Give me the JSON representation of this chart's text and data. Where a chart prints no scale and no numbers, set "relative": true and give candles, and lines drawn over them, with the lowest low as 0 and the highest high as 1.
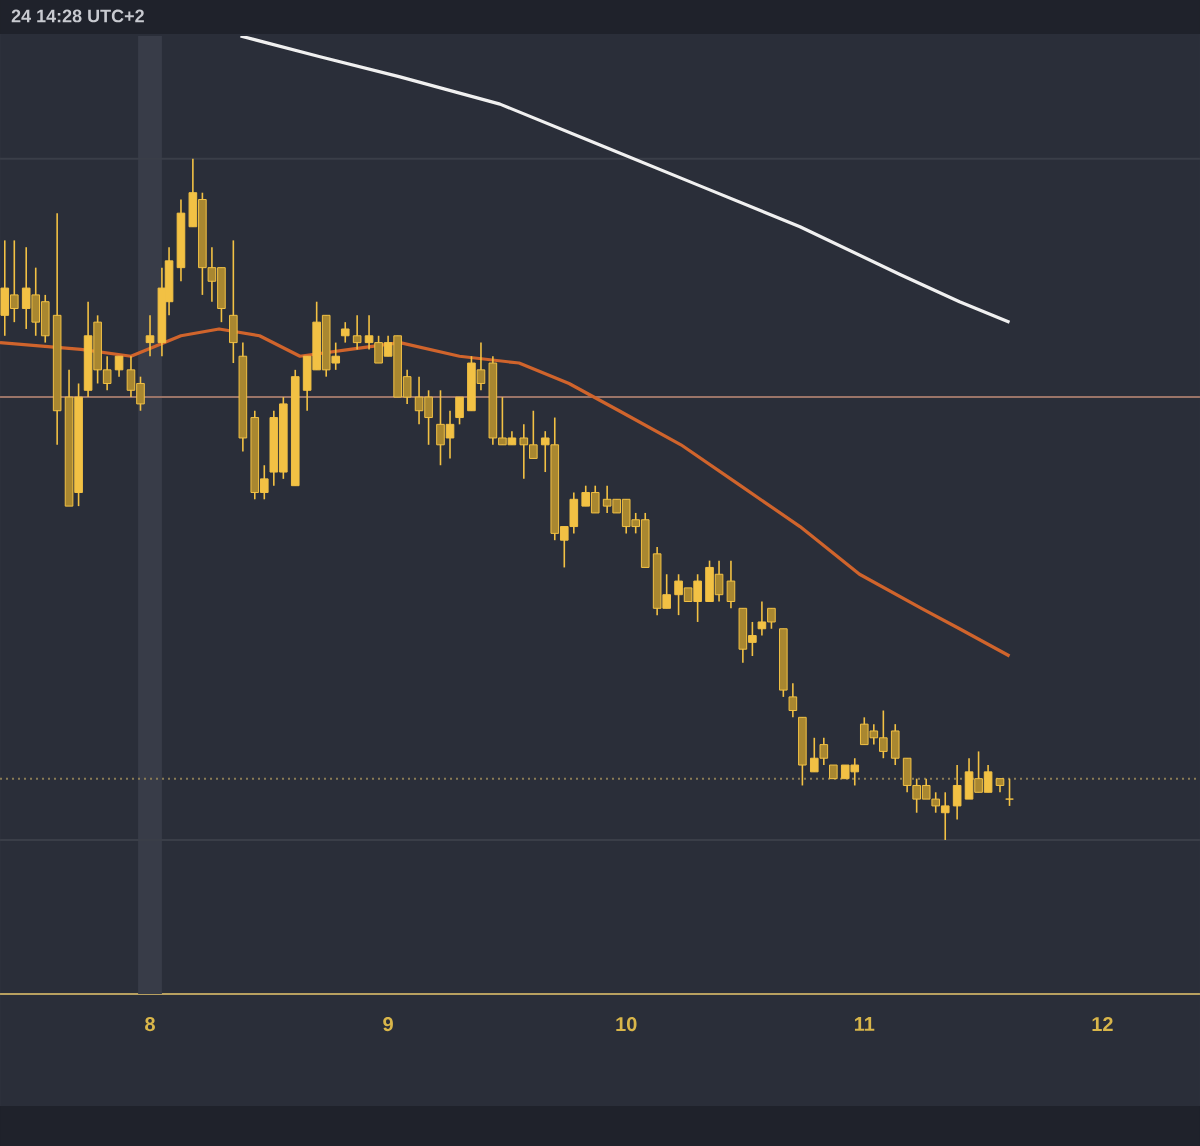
{
  "chart_data": {
    "type": "candlestick",
    "relative": true,
    "color": "#f2c144",
    "annotations": [
      "24 14:28 UTC+2"
    ],
    "x": [
      7.39,
      7.43,
      7.48,
      7.52,
      7.56,
      7.61,
      7.66,
      7.7,
      7.74,
      7.78,
      7.82,
      7.87,
      7.92,
      7.96,
      8.0,
      8.05,
      8.08,
      8.13,
      8.18,
      8.22,
      8.26,
      8.3,
      8.35,
      8.39,
      8.44,
      8.48,
      8.52,
      8.56,
      8.61,
      8.66,
      8.7,
      8.74,
      8.78,
      8.82,
      8.87,
      8.92,
      8.96,
      9.0,
      9.04,
      9.08,
      9.13,
      9.17,
      9.22,
      9.26,
      9.3,
      9.35,
      9.39,
      9.44,
      9.48,
      9.52,
      9.57,
      9.61,
      9.66,
      9.7,
      9.74,
      9.78,
      9.83,
      9.87,
      9.92,
      9.96,
      10.0,
      10.04,
      10.08,
      10.13,
      10.17,
      10.22,
      10.26,
      10.3,
      10.35,
      10.39,
      10.44,
      10.49,
      10.53,
      10.57,
      10.61,
      10.66,
      10.7,
      10.74,
      10.79,
      10.83,
      10.87,
      10.92,
      10.96,
      11.0,
      11.04,
      11.08,
      11.13,
      11.18,
      11.22,
      11.26,
      11.3,
      11.34,
      11.39,
      11.44,
      11.48,
      11.52,
      11.57,
      11.61
    ],
    "ohlc": [
      [
        0.77,
        0.88,
        0.74,
        0.81
      ],
      [
        0.8,
        0.88,
        0.76,
        0.78
      ],
      [
        0.78,
        0.87,
        0.75,
        0.81
      ],
      [
        0.8,
        0.84,
        0.74,
        0.76
      ],
      [
        0.79,
        0.8,
        0.73,
        0.74
      ],
      [
        0.77,
        0.92,
        0.58,
        0.63
      ],
      [
        0.65,
        0.69,
        0.49,
        0.49
      ],
      [
        0.51,
        0.67,
        0.49,
        0.65
      ],
      [
        0.66,
        0.79,
        0.65,
        0.74
      ],
      [
        0.76,
        0.77,
        0.67,
        0.69
      ],
      [
        0.69,
        0.71,
        0.66,
        0.67
      ],
      [
        0.69,
        0.71,
        0.68,
        0.71
      ],
      [
        0.69,
        0.71,
        0.65,
        0.66
      ],
      [
        0.67,
        0.68,
        0.63,
        0.64
      ],
      [
        0.73,
        0.77,
        0.71,
        0.74
      ],
      [
        0.73,
        0.84,
        0.71,
        0.81
      ],
      [
        0.79,
        0.87,
        0.77,
        0.85
      ],
      [
        0.84,
        0.94,
        0.82,
        0.92
      ],
      [
        0.9,
        1.0,
        0.9,
        0.95
      ],
      [
        0.94,
        0.95,
        0.8,
        0.84
      ],
      [
        0.84,
        0.87,
        0.79,
        0.82
      ],
      [
        0.84,
        0.84,
        0.76,
        0.78
      ],
      [
        0.77,
        0.88,
        0.7,
        0.73
      ],
      [
        0.71,
        0.73,
        0.57,
        0.59
      ],
      [
        0.62,
        0.63,
        0.5,
        0.51
      ],
      [
        0.51,
        0.55,
        0.5,
        0.53
      ],
      [
        0.54,
        0.63,
        0.52,
        0.62
      ],
      [
        0.54,
        0.65,
        0.53,
        0.64
      ],
      [
        0.52,
        0.69,
        0.52,
        0.68
      ],
      [
        0.66,
        0.71,
        0.63,
        0.71
      ],
      [
        0.69,
        0.79,
        0.69,
        0.76
      ],
      [
        0.77,
        0.77,
        0.68,
        0.69
      ],
      [
        0.7,
        0.73,
        0.69,
        0.71
      ],
      [
        0.74,
        0.76,
        0.73,
        0.75
      ],
      [
        0.74,
        0.77,
        0.72,
        0.73
      ],
      [
        0.73,
        0.77,
        0.72,
        0.74
      ],
      [
        0.73,
        0.74,
        0.7,
        0.7
      ],
      [
        0.71,
        0.74,
        0.71,
        0.73
      ],
      [
        0.74,
        0.74,
        0.65,
        0.65
      ],
      [
        0.68,
        0.69,
        0.64,
        0.65
      ],
      [
        0.65,
        0.68,
        0.61,
        0.63
      ],
      [
        0.65,
        0.66,
        0.58,
        0.62
      ],
      [
        0.61,
        0.66,
        0.55,
        0.58
      ],
      [
        0.59,
        0.63,
        0.56,
        0.61
      ],
      [
        0.62,
        0.65,
        0.61,
        0.65
      ],
      [
        0.63,
        0.71,
        0.63,
        0.7
      ],
      [
        0.69,
        0.73,
        0.66,
        0.67
      ],
      [
        0.7,
        0.71,
        0.58,
        0.59
      ],
      [
        0.59,
        0.65,
        0.58,
        0.58
      ],
      [
        0.58,
        0.6,
        0.58,
        0.59
      ],
      [
        0.59,
        0.61,
        0.53,
        0.58
      ],
      [
        0.58,
        0.63,
        0.56,
        0.56
      ],
      [
        0.58,
        0.6,
        0.54,
        0.59
      ],
      [
        0.58,
        0.62,
        0.44,
        0.45
      ],
      [
        0.44,
        0.46,
        0.4,
        0.46
      ],
      [
        0.46,
        0.51,
        0.45,
        0.5
      ],
      [
        0.49,
        0.52,
        0.49,
        0.51
      ],
      [
        0.51,
        0.52,
        0.48,
        0.48
      ],
      [
        0.5,
        0.52,
        0.48,
        0.49
      ],
      [
        0.5,
        0.5,
        0.48,
        0.48
      ],
      [
        0.5,
        0.5,
        0.45,
        0.46
      ],
      [
        0.47,
        0.48,
        0.45,
        0.46
      ],
      [
        0.47,
        0.48,
        0.4,
        0.4
      ],
      [
        0.42,
        0.43,
        0.33,
        0.34
      ],
      [
        0.34,
        0.39,
        0.34,
        0.36
      ],
      [
        0.36,
        0.39,
        0.33,
        0.38
      ],
      [
        0.37,
        0.37,
        0.35,
        0.35
      ],
      [
        0.35,
        0.39,
        0.32,
        0.38
      ],
      [
        0.35,
        0.41,
        0.35,
        0.4
      ],
      [
        0.39,
        0.41,
        0.35,
        0.36
      ],
      [
        0.38,
        0.41,
        0.34,
        0.35
      ],
      [
        0.34,
        0.34,
        0.26,
        0.28
      ],
      [
        0.29,
        0.32,
        0.27,
        0.3
      ],
      [
        0.31,
        0.35,
        0.3,
        0.32
      ],
      [
        0.34,
        0.34,
        0.31,
        0.32
      ],
      [
        0.31,
        0.31,
        0.21,
        0.22
      ],
      [
        0.21,
        0.23,
        0.18,
        0.19
      ],
      [
        0.18,
        0.18,
        0.08,
        0.11
      ],
      [
        0.1,
        0.15,
        0.1,
        0.12
      ],
      [
        0.14,
        0.15,
        0.11,
        0.12
      ],
      [
        0.11,
        0.11,
        0.09,
        0.09
      ],
      [
        0.09,
        0.11,
        0.09,
        0.11
      ],
      [
        0.1,
        0.12,
        0.08,
        0.11
      ],
      [
        0.17,
        0.18,
        0.14,
        0.14
      ],
      [
        0.16,
        0.17,
        0.14,
        0.15
      ],
      [
        0.15,
        0.19,
        0.12,
        0.13
      ],
      [
        0.16,
        0.17,
        0.11,
        0.12
      ],
      [
        0.12,
        0.12,
        0.07,
        0.08
      ],
      [
        0.08,
        0.09,
        0.04,
        0.06
      ],
      [
        0.08,
        0.09,
        0.06,
        0.06
      ],
      [
        0.06,
        0.07,
        0.04,
        0.05
      ],
      [
        0.04,
        0.07,
        0.0,
        0.05
      ],
      [
        0.05,
        0.11,
        0.03,
        0.08
      ],
      [
        0.06,
        0.12,
        0.06,
        0.1
      ],
      [
        0.09,
        0.13,
        0.07,
        0.07
      ],
      [
        0.07,
        0.11,
        0.07,
        0.1
      ],
      [
        0.09,
        0.09,
        0.07,
        0.08
      ],
      [
        0.06,
        0.09,
        0.05,
        0.06
      ]
    ],
    "series": [
      {
        "type": "line",
        "color": "#d0642c",
        "x": [
          7.37,
          7.71,
          7.92,
          8.13,
          8.29,
          8.46,
          8.63,
          8.84,
          9.05,
          9.3,
          9.55,
          9.76,
          9.97,
          10.23,
          10.48,
          10.73,
          10.98,
          11.24,
          11.4,
          11.61
        ],
        "values": [
          0.73,
          0.72,
          0.71,
          0.74,
          0.75,
          0.74,
          0.71,
          0.72,
          0.73,
          0.71,
          0.7,
          0.67,
          0.63,
          0.58,
          0.52,
          0.46,
          0.39,
          0.34,
          0.31,
          0.27
        ]
      },
      {
        "type": "line",
        "color": "#f0f0f0",
        "x": [
          8.38,
          8.71,
          9.05,
          9.47,
          9.89,
          10.31,
          10.73,
          11.15,
          11.4,
          11.61
        ],
        "values": [
          1.18,
          1.15,
          1.12,
          1.08,
          1.02,
          0.96,
          0.9,
          0.83,
          0.79,
          0.76
        ]
      }
    ],
    "xlim": [
      7.37,
      12.41
    ],
    "xticks": [
      8,
      9,
      10,
      11,
      12
    ],
    "ref_lines": [
      {
        "axis": "y",
        "value": 1.0,
        "color": "#3a3e48"
      },
      {
        "axis": "y",
        "value": 0.65,
        "color": "#9a7468"
      },
      {
        "axis": "y",
        "value": 0.09,
        "color": "#8c7d55",
        "line_style": "dotted"
      },
      {
        "axis": "y",
        "value": 0.0,
        "color": "#3a3e48"
      }
    ],
    "bands": [
      {
        "axis": "x",
        "from": 7.95,
        "to": 8.05,
        "color": "#383c48"
      }
    ]
  }
}
